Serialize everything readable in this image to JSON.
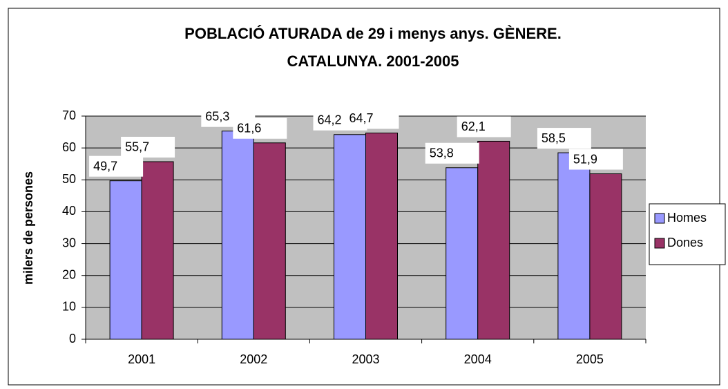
{
  "chart_data": {
    "type": "bar",
    "title": [
      "POBLACIÓ ATURADA de 29 i menys anys. GÈNERE.",
      "CATALUNYA. 2001-2005"
    ],
    "y_label": "milers de persones",
    "categories": [
      "2001",
      "2002",
      "2003",
      "2004",
      "2005"
    ],
    "series": [
      {
        "name": "Homes",
        "color": "#9999ff",
        "values": [
          49.7,
          65.3,
          64.2,
          53.8,
          58.5
        ],
        "value_labels": [
          "49,7",
          "65,3",
          "64,2",
          "53,8",
          "58,5"
        ]
      },
      {
        "name": "Dones",
        "color": "#993366",
        "values": [
          55.7,
          61.6,
          64.7,
          62.1,
          51.9
        ],
        "value_labels": [
          "55,7",
          "61,6",
          "64,7",
          "62,1",
          "51,9"
        ]
      }
    ],
    "ylim": [
      0,
      70
    ],
    "yticks": [
      0,
      10,
      20,
      30,
      40,
      50,
      60,
      70
    ],
    "grid": true,
    "legend": "right",
    "plot_background": "#c0c0c0"
  }
}
